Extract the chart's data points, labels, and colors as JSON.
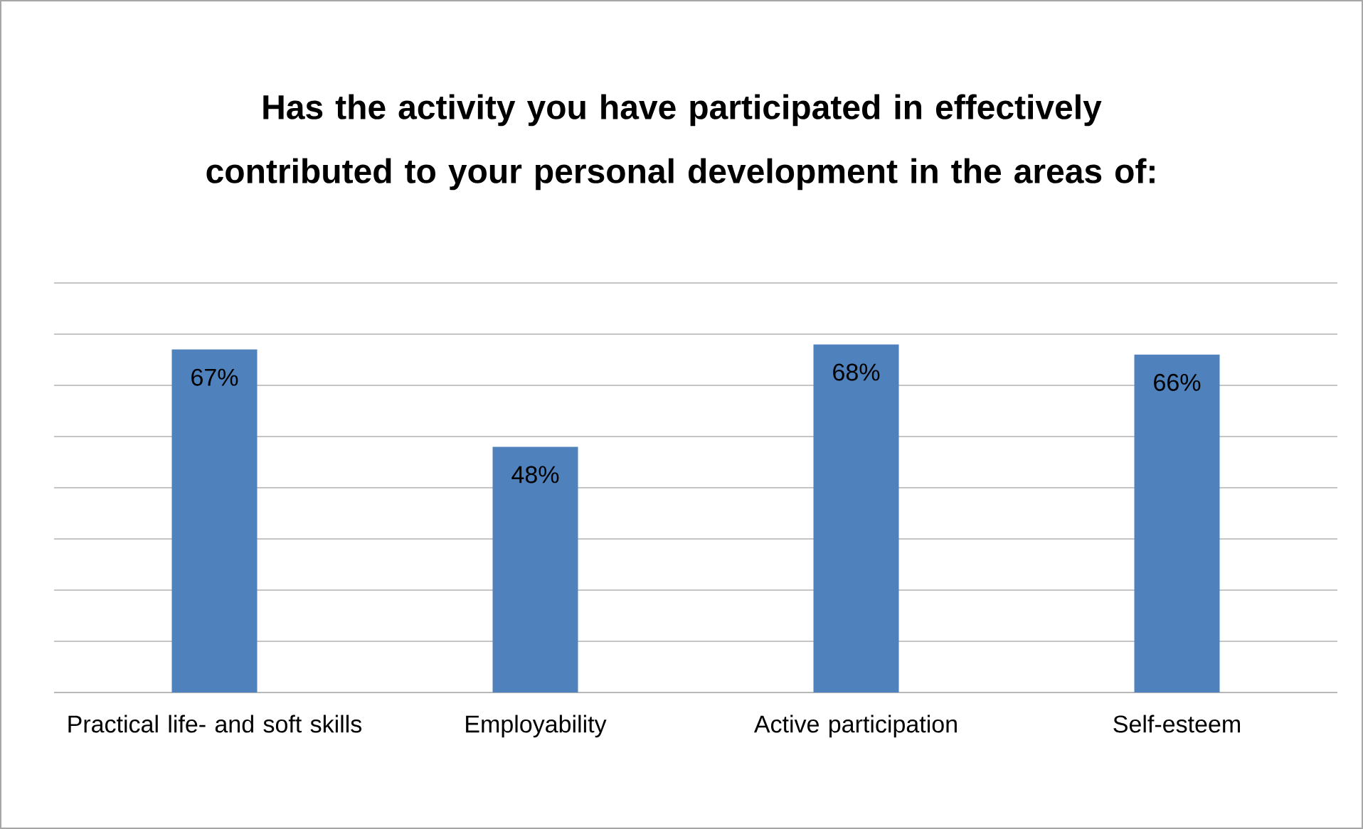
{
  "chart_data": {
    "type": "bar",
    "title": "Has the activity you have participated in effectively contributed to your personal development in the areas of:",
    "categories": [
      "Practical life- and soft skills",
      "Employability",
      "Active participation",
      "Self-esteem"
    ],
    "values": [
      67,
      48,
      68,
      66
    ],
    "value_labels": [
      "67%",
      "48%",
      "68%",
      "66%"
    ],
    "color": "#4f81bd",
    "ylim": [
      0,
      80
    ],
    "yticks": [
      {
        "value": 0,
        "label": null
      },
      {
        "value": 10,
        "label": null
      },
      {
        "value": 20,
        "label": null
      },
      {
        "value": 30,
        "label": null
      },
      {
        "value": 40,
        "label": null
      },
      {
        "value": 50,
        "label": null
      },
      {
        "value": 60,
        "label": null
      },
      {
        "value": 70,
        "label": null
      },
      {
        "value": 80,
        "label": null
      }
    ],
    "grid": "y",
    "tick_labels": "x"
  }
}
